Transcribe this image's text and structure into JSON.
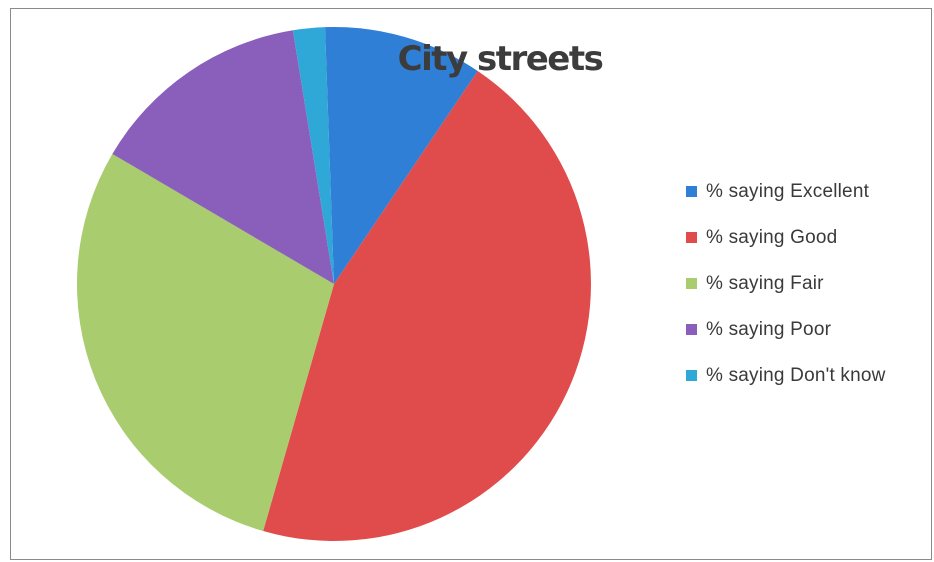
{
  "chart_data": {
    "type": "pie",
    "title": "City streets",
    "categories": [
      "% saying Excellent",
      "% saying Good",
      "% saying Fair",
      "% saying Poor",
      "% saying Don't know"
    ],
    "values": [
      10,
      45,
      29,
      14,
      2
    ],
    "colors": [
      "#2f7fd6",
      "#e04b4c",
      "#a8cc6e",
      "#8a5fbb",
      "#2fa8d8"
    ],
    "legend_position": "right",
    "start_angle_deg": -2,
    "direction": "clockwise"
  }
}
